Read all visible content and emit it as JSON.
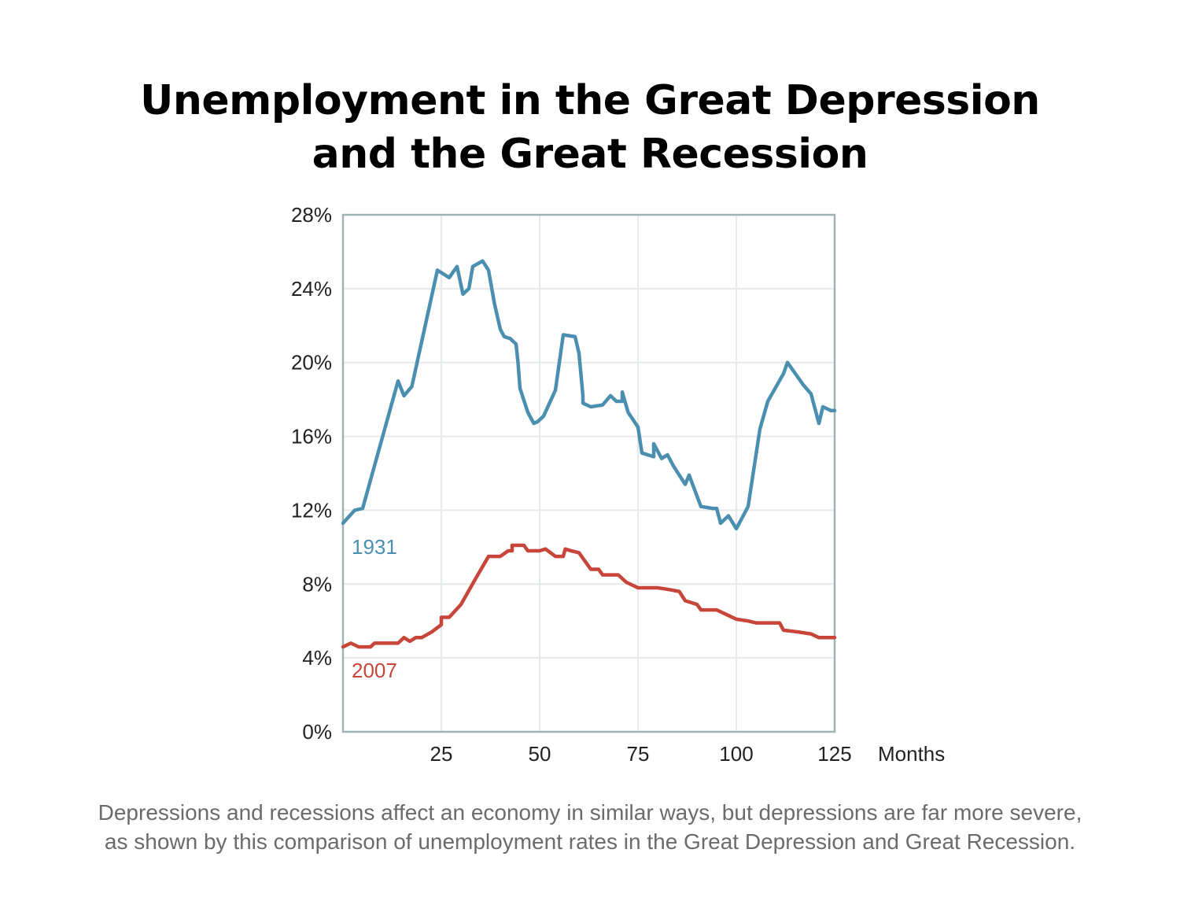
{
  "title_line1": "Unemployment in the Great Depression",
  "title_line2": "and the Great Recession",
  "caption_line1": "Depressions and recessions affect an economy in similar ways, but depressions are far more severe,",
  "caption_line2": "as shown by this comparison of unemployment rates in the Great Depression and Great Recession.",
  "colors": {
    "series_1931": "#4a8fb0",
    "series_2007": "#c8453a",
    "grid": "#e6eaea",
    "frame": "#9fb3b5",
    "text": "#222222"
  },
  "chart_data": {
    "type": "line",
    "title": "Unemployment in the Great Depression and the Great Recession",
    "xlabel": "Months",
    "ylabel": "",
    "xlim": [
      0,
      125
    ],
    "ylim": [
      0,
      28
    ],
    "grid": true,
    "x_ticks": [
      25,
      50,
      75,
      100,
      125
    ],
    "x_tick_labels": [
      "25",
      "50",
      "75",
      "100",
      "125"
    ],
    "y_ticks": [
      0,
      4,
      8,
      12,
      16,
      20,
      24,
      28
    ],
    "y_tick_labels": [
      "0%",
      "4%",
      "8%",
      "12%",
      "16%",
      "20%",
      "24%",
      "28%"
    ],
    "series": [
      {
        "name": "1931",
        "points": [
          [
            0,
            11.3
          ],
          [
            3,
            12.0
          ],
          [
            5,
            12.1
          ],
          [
            14,
            19.0
          ],
          [
            15.5,
            18.2
          ],
          [
            17.5,
            18.7
          ],
          [
            24,
            25.0
          ],
          [
            27,
            24.6
          ],
          [
            29,
            25.2
          ],
          [
            30.5,
            23.7
          ],
          [
            32,
            24.0
          ],
          [
            33,
            25.2
          ],
          [
            35.5,
            25.5
          ],
          [
            37,
            25.0
          ],
          [
            38.5,
            23.2
          ],
          [
            40,
            21.8
          ],
          [
            41,
            21.4
          ],
          [
            42.5,
            21.3
          ],
          [
            44,
            21.0
          ],
          [
            44.5,
            20.0
          ],
          [
            45,
            18.6
          ],
          [
            47,
            17.3
          ],
          [
            48.5,
            16.7
          ],
          [
            49.5,
            16.8
          ],
          [
            51,
            17.1
          ],
          [
            54,
            18.5
          ],
          [
            56,
            21.5
          ],
          [
            59,
            21.4
          ],
          [
            60,
            20.5
          ],
          [
            61,
            18.2
          ],
          [
            61,
            17.8
          ],
          [
            63,
            17.6
          ],
          [
            66,
            17.7
          ],
          [
            68,
            18.2
          ],
          [
            69.5,
            17.9
          ],
          [
            71,
            17.9
          ],
          [
            71,
            18.4
          ],
          [
            72.5,
            17.3
          ],
          [
            75,
            16.5
          ],
          [
            76,
            15.1
          ],
          [
            79,
            14.9
          ],
          [
            79,
            15.6
          ],
          [
            80,
            15.2
          ],
          [
            81,
            14.8
          ],
          [
            82.5,
            15.0
          ],
          [
            84,
            14.4
          ],
          [
            87,
            13.4
          ],
          [
            88,
            13.9
          ],
          [
            91,
            12.2
          ],
          [
            94,
            12.1
          ],
          [
            95,
            12.1
          ],
          [
            96,
            11.3
          ],
          [
            98,
            11.7
          ],
          [
            100,
            11.0
          ],
          [
            103,
            12.2
          ],
          [
            106,
            16.4
          ],
          [
            108,
            17.9
          ],
          [
            112,
            19.4
          ],
          [
            113,
            20.0
          ],
          [
            117,
            18.8
          ],
          [
            119,
            18.3
          ],
          [
            121,
            16.7
          ],
          [
            122,
            17.6
          ],
          [
            124,
            17.4
          ],
          [
            126,
            17.4
          ]
        ]
      },
      {
        "name": "2007",
        "points": [
          [
            0,
            4.6
          ],
          [
            2,
            4.8
          ],
          [
            4,
            4.6
          ],
          [
            7,
            4.6
          ],
          [
            8,
            4.8
          ],
          [
            14,
            4.8
          ],
          [
            15.5,
            5.1
          ],
          [
            17,
            4.9
          ],
          [
            18.5,
            5.1
          ],
          [
            20,
            5.1
          ],
          [
            22.5,
            5.4
          ],
          [
            25,
            5.8
          ],
          [
            25,
            6.2
          ],
          [
            27,
            6.2
          ],
          [
            30,
            6.9
          ],
          [
            34,
            8.4
          ],
          [
            37,
            9.5
          ],
          [
            40,
            9.5
          ],
          [
            42,
            9.8
          ],
          [
            43,
            9.8
          ],
          [
            43,
            10.1
          ],
          [
            46,
            10.1
          ],
          [
            47,
            9.8
          ],
          [
            50,
            9.8
          ],
          [
            51.5,
            9.9
          ],
          [
            54,
            9.5
          ],
          [
            56,
            9.5
          ],
          [
            56.5,
            9.9
          ],
          [
            58,
            9.8
          ],
          [
            60,
            9.7
          ],
          [
            63,
            8.8
          ],
          [
            65,
            8.8
          ],
          [
            66,
            8.5
          ],
          [
            70,
            8.5
          ],
          [
            72,
            8.1
          ],
          [
            75,
            7.8
          ],
          [
            78,
            7.8
          ],
          [
            80,
            7.8
          ],
          [
            83,
            7.7
          ],
          [
            85.5,
            7.6
          ],
          [
            87,
            7.1
          ],
          [
            90,
            6.9
          ],
          [
            91,
            6.6
          ],
          [
            95,
            6.6
          ],
          [
            98,
            6.3
          ],
          [
            100,
            6.1
          ],
          [
            103,
            6.0
          ],
          [
            105,
            5.9
          ],
          [
            111,
            5.9
          ],
          [
            112,
            5.5
          ],
          [
            116,
            5.4
          ],
          [
            119,
            5.3
          ],
          [
            120,
            5.2
          ],
          [
            121,
            5.1
          ],
          [
            125,
            5.1
          ]
        ]
      }
    ],
    "annotations": [
      {
        "text": "1931",
        "series": "1931"
      },
      {
        "text": "2007",
        "series": "2007"
      }
    ]
  }
}
